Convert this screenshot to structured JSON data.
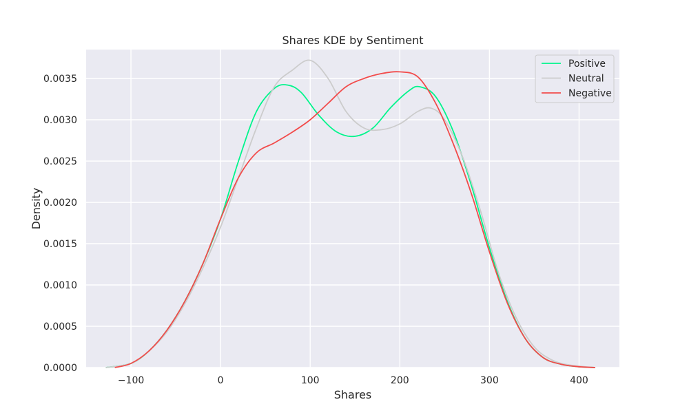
{
  "chart_data": {
    "type": "line",
    "title": "Shares KDE by Sentiment",
    "xlabel": "Shares",
    "ylabel": "Density",
    "xlim": [
      -150,
      445
    ],
    "ylim": [
      0,
      0.00385
    ],
    "xticks": [
      -100,
      0,
      100,
      200,
      300,
      400
    ],
    "xtick_labels": [
      "−100",
      "0",
      "100",
      "200",
      "300",
      "400"
    ],
    "yticks": [
      0,
      0.0005,
      0.001,
      0.0015,
      0.002,
      0.0025,
      0.003,
      0.0035
    ],
    "ytick_labels": [
      "0.0000",
      "0.0005",
      "0.0010",
      "0.0015",
      "0.0020",
      "0.0025",
      "0.0030",
      "0.0035"
    ],
    "grid": true,
    "legend_position": "top-right",
    "series": [
      {
        "name": "Positive",
        "color": "#00f58c",
        "x": [
          -128,
          -100,
          -80,
          -60,
          -40,
          -20,
          0,
          20,
          40,
          60,
          75,
          90,
          110,
          130,
          150,
          170,
          190,
          210,
          222,
          240,
          260,
          280,
          300,
          320,
          340,
          360,
          380,
          400,
          418
        ],
        "y": [
          0.0,
          5e-05,
          0.0002,
          0.00045,
          0.0008,
          0.00125,
          0.0018,
          0.0025,
          0.0031,
          0.00338,
          0.00342,
          0.00333,
          0.00305,
          0.00285,
          0.0028,
          0.0029,
          0.00315,
          0.00335,
          0.0034,
          0.00328,
          0.00285,
          0.0022,
          0.00145,
          0.0008,
          0.00035,
          0.00012,
          4e-05,
          1e-05,
          0.0
        ]
      },
      {
        "name": "Neutral",
        "color": "#cccccc",
        "x": [
          -128,
          -100,
          -80,
          -60,
          -40,
          -20,
          0,
          20,
          40,
          60,
          80,
          100,
          120,
          140,
          160,
          180,
          200,
          220,
          235,
          250,
          270,
          290,
          310,
          330,
          350,
          370,
          390,
          418
        ],
        "y": [
          0.0,
          5e-05,
          0.0002,
          0.00043,
          0.00077,
          0.0012,
          0.0017,
          0.0023,
          0.0029,
          0.0034,
          0.0036,
          0.00372,
          0.0035,
          0.0031,
          0.0029,
          0.00288,
          0.00295,
          0.0031,
          0.00314,
          0.003,
          0.00255,
          0.0019,
          0.00115,
          0.0006,
          0.00025,
          9e-05,
          3e-05,
          0.0
        ]
      },
      {
        "name": "Negative",
        "color": "#f24b4b",
        "x": [
          -118,
          -100,
          -80,
          -60,
          -40,
          -20,
          0,
          20,
          40,
          60,
          80,
          100,
          120,
          140,
          160,
          180,
          200,
          220,
          240,
          260,
          280,
          300,
          320,
          340,
          360,
          380,
          400,
          418
        ],
        "y": [
          0.0,
          5e-05,
          0.0002,
          0.00045,
          0.0008,
          0.00125,
          0.0018,
          0.0023,
          0.0026,
          0.00272,
          0.00285,
          0.003,
          0.0032,
          0.0034,
          0.0035,
          0.00356,
          0.00358,
          0.00352,
          0.0032,
          0.0027,
          0.0021,
          0.0014,
          0.00078,
          0.00035,
          0.00012,
          4e-05,
          1e-05,
          0.0
        ]
      }
    ]
  }
}
